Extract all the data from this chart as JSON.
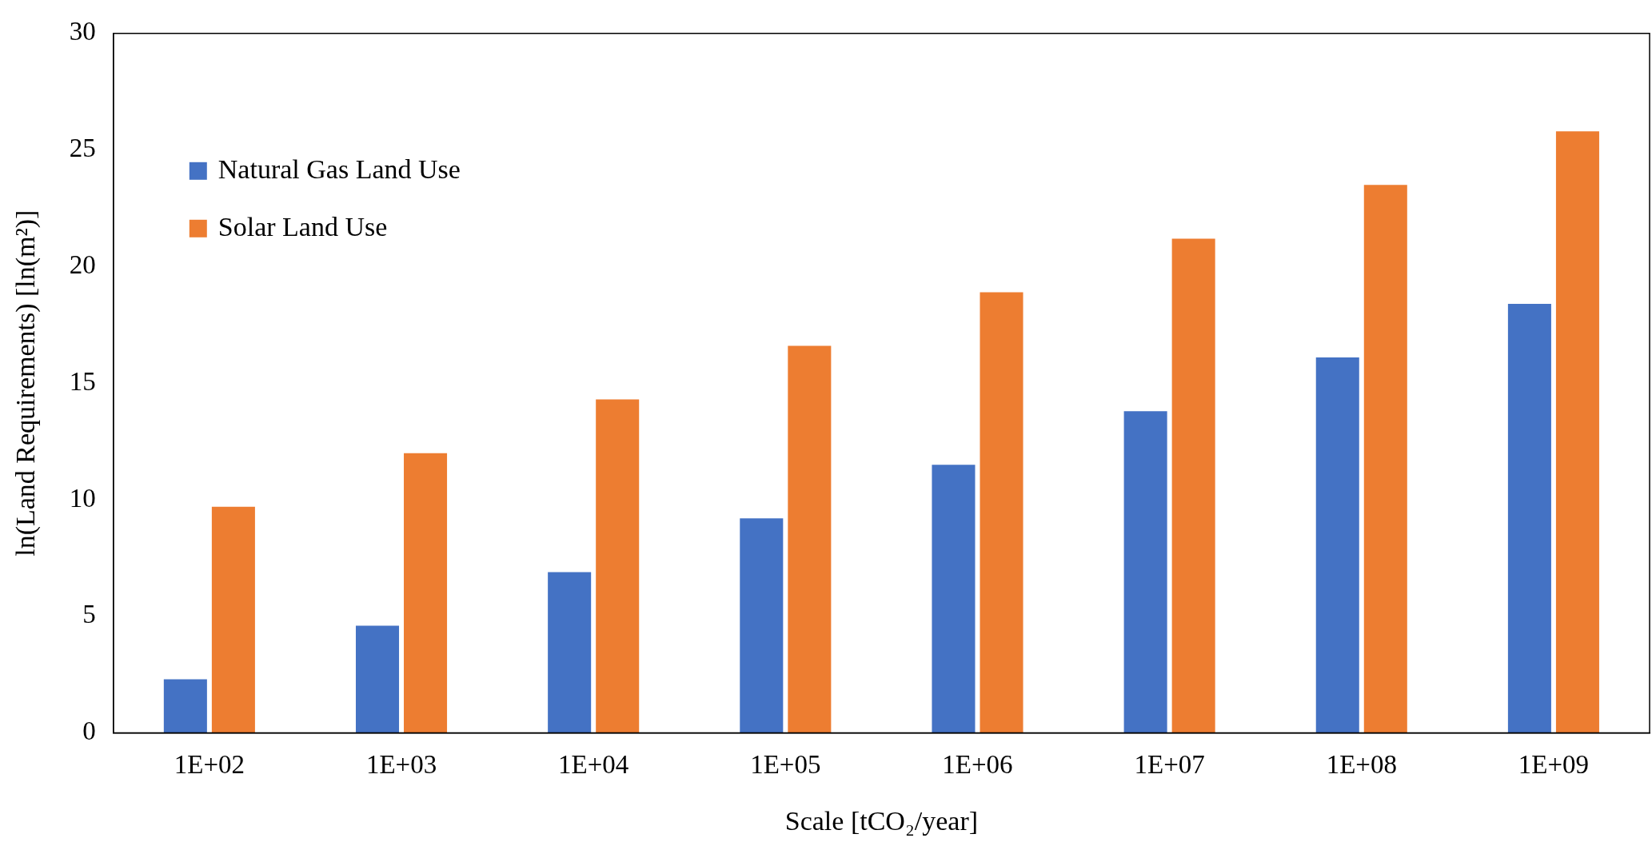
{
  "chart_data": {
    "type": "bar",
    "xlabel": "Scale [tCO₂/year]",
    "ylabel": "ln(Land Requirements) [ln(m²)]",
    "categories": [
      "1E+02",
      "1E+03",
      "1E+04",
      "1E+05",
      "1E+06",
      "1E+07",
      "1E+08",
      "1E+09"
    ],
    "series": [
      {
        "name": "Natural Gas Land Use",
        "color": "#4472c4",
        "values": [
          2.3,
          4.6,
          6.9,
          9.2,
          11.5,
          13.8,
          16.1,
          18.4
        ]
      },
      {
        "name": "Solar Land Use",
        "color": "#ed7d31",
        "values": [
          9.7,
          12.0,
          14.3,
          16.6,
          18.9,
          21.2,
          23.5,
          25.8
        ]
      }
    ],
    "ylim": [
      0,
      30
    ],
    "yticks": [
      0,
      5,
      10,
      15,
      20,
      25,
      30
    ],
    "grid": false,
    "legend": "top left"
  }
}
